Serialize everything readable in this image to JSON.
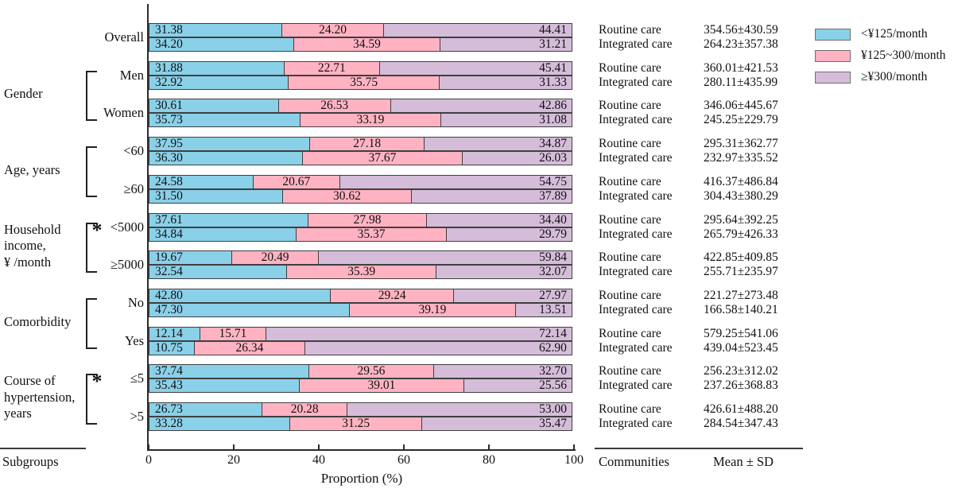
{
  "figure": {
    "xlabel": "Proportion (%)",
    "footer": {
      "subgroups": "Subgroups",
      "communities": "Communities",
      "mean_sd": "Mean ± SD"
    }
  },
  "legend": [
    {
      "name": "lt-125",
      "label": "<¥125/month",
      "color": "#8AD0E8"
    },
    {
      "name": "125-300",
      "label": "¥125~300/month",
      "color": "#FFB3C2"
    },
    {
      "name": "ge-300",
      "label": "≥¥300/month",
      "color": "#D5BDDA"
    }
  ],
  "chart_data": {
    "type": "bar",
    "orientation": "horizontal",
    "stacked": true,
    "xlim": [
      0,
      100
    ],
    "x_ticks": [
      0,
      20,
      40,
      60,
      80,
      100
    ],
    "xlabel": "Proportion (%)",
    "grid": false,
    "legend_position": "top-right",
    "series_names": [
      "<¥125/month",
      "¥125~300/month",
      "≥¥300/month"
    ],
    "care_labels": [
      "Routine care",
      "Integrated care"
    ],
    "groups": [
      {
        "subgroup": "Overall",
        "routine": {
          "segments": [
            31.38,
            24.2,
            44.41
          ],
          "mean_sd": "354.56±430.59"
        },
        "integrated": {
          "segments": [
            34.2,
            34.59,
            31.21
          ],
          "mean_sd": "264.23±357.38"
        }
      },
      {
        "subgroup": "Men",
        "routine": {
          "segments": [
            31.88,
            22.71,
            45.41
          ],
          "mean_sd": "360.01±421.53"
        },
        "integrated": {
          "segments": [
            32.92,
            35.75,
            31.33
          ],
          "mean_sd": "280.11±435.99"
        }
      },
      {
        "subgroup": "Women",
        "routine": {
          "segments": [
            30.61,
            26.53,
            42.86
          ],
          "mean_sd": "346.06±445.67"
        },
        "integrated": {
          "segments": [
            35.73,
            33.19,
            31.08
          ],
          "mean_sd": "245.25±229.79"
        }
      },
      {
        "subgroup": "<60",
        "routine": {
          "segments": [
            37.95,
            27.18,
            34.87
          ],
          "mean_sd": "295.31±362.77"
        },
        "integrated": {
          "segments": [
            36.3,
            37.67,
            26.03
          ],
          "mean_sd": "232.97±335.52"
        }
      },
      {
        "subgroup": "≥60",
        "routine": {
          "segments": [
            24.58,
            20.67,
            54.75
          ],
          "mean_sd": "416.37±486.84"
        },
        "integrated": {
          "segments": [
            31.5,
            30.62,
            37.89
          ],
          "mean_sd": "304.43±380.29"
        }
      },
      {
        "subgroup": "<5000",
        "routine": {
          "segments": [
            37.61,
            27.98,
            34.4
          ],
          "mean_sd": "295.64±392.25"
        },
        "integrated": {
          "segments": [
            34.84,
            35.37,
            29.79
          ],
          "mean_sd": "265.79±426.33"
        }
      },
      {
        "subgroup": "≥5000",
        "routine": {
          "segments": [
            19.67,
            20.49,
            59.84
          ],
          "mean_sd": "422.85±409.85"
        },
        "integrated": {
          "segments": [
            32.54,
            35.39,
            32.07
          ],
          "mean_sd": "255.71±235.97"
        }
      },
      {
        "subgroup": "No",
        "routine": {
          "segments": [
            42.8,
            29.24,
            27.97
          ],
          "mean_sd": "221.27±273.48"
        },
        "integrated": {
          "segments": [
            47.3,
            39.19,
            13.51
          ],
          "mean_sd": "166.58±140.21"
        }
      },
      {
        "subgroup": "Yes",
        "routine": {
          "segments": [
            12.14,
            15.71,
            72.14
          ],
          "mean_sd": "579.25±541.06"
        },
        "integrated": {
          "segments": [
            10.75,
            26.34,
            62.9
          ],
          "mean_sd": "439.04±523.45"
        }
      },
      {
        "subgroup": "≤5",
        "routine": {
          "segments": [
            37.74,
            29.56,
            32.7
          ],
          "mean_sd": "256.23±312.02"
        },
        "integrated": {
          "segments": [
            35.43,
            39.01,
            25.56
          ],
          "mean_sd": "237.26±368.83"
        }
      },
      {
        "subgroup": ">5",
        "routine": {
          "segments": [
            26.73,
            20.28,
            53.0
          ],
          "mean_sd": "426.61±488.20"
        },
        "integrated": {
          "segments": [
            33.28,
            31.25,
            35.47
          ],
          "mean_sd": "284.54±347.43"
        }
      }
    ],
    "categories": [
      {
        "label_lines": [
          "Gender"
        ],
        "first": 1,
        "last": 2,
        "asterisk": false
      },
      {
        "label_lines": [
          "Age, years"
        ],
        "first": 3,
        "last": 4,
        "asterisk": false
      },
      {
        "label_lines": [
          "Household",
          "income,",
          "¥ /month"
        ],
        "first": 5,
        "last": 6,
        "asterisk": true
      },
      {
        "label_lines": [
          "Comorbidity"
        ],
        "first": 7,
        "last": 8,
        "asterisk": false
      },
      {
        "label_lines": [
          "Course of",
          "hypertension,",
          "years"
        ],
        "first": 9,
        "last": 10,
        "asterisk": true
      }
    ]
  }
}
